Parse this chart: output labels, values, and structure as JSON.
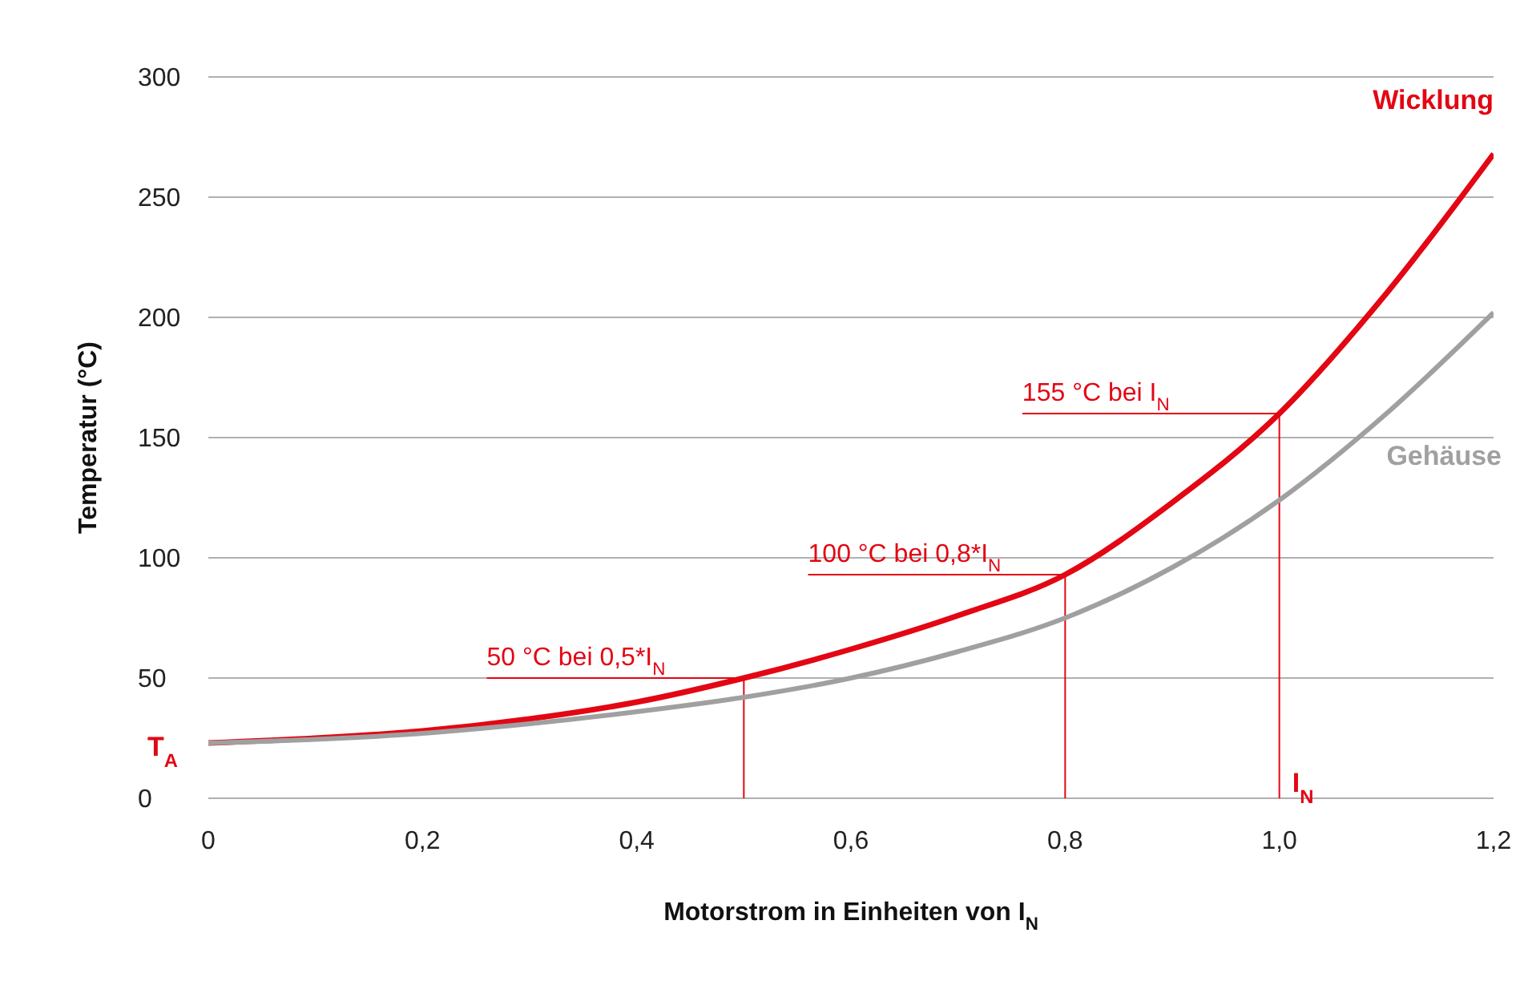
{
  "chart_data": {
    "type": "line",
    "xlabel": "Motorstrom in Einheiten von I$_{N}$",
    "ylabel": "Temperatur (°C)",
    "x": [
      0,
      0.1,
      0.2,
      0.3,
      0.4,
      0.5,
      0.6,
      0.7,
      0.8,
      0.9,
      1.0,
      1.1,
      1.2
    ],
    "series": [
      {
        "name": "Wicklung",
        "color": "#e30613",
        "values": [
          23,
          25,
          28,
          33,
          40,
          50,
          62,
          76,
          93,
          123,
          160,
          210,
          268
        ]
      },
      {
        "name": "Gehäuse",
        "color": "#a0a0a0",
        "values": [
          23,
          24.5,
          27,
          31,
          36,
          42,
          50,
          61,
          75,
          96,
          124,
          160,
          202
        ]
      }
    ],
    "xlim": [
      0,
      1.2
    ],
    "xticks": [
      0,
      {
        "value": 0.2,
        "label": "0,2"
      },
      {
        "value": 0.4,
        "label": "0,4"
      },
      {
        "value": 0.6,
        "label": "0,6"
      },
      {
        "value": 0.8,
        "label": "0,8"
      },
      {
        "value": 1.0,
        "label": "1,0"
      },
      {
        "value": 1.2,
        "label": "1,2"
      }
    ],
    "ylim": [
      0,
      300
    ],
    "yticks": [
      0,
      50,
      100,
      150,
      200,
      250,
      300
    ],
    "grid": "y",
    "annotations": [
      {
        "text": "50 °C bei 0,5*I$_{N}$",
        "x": 0.5,
        "y": 50
      },
      {
        "text": "100 °C bei 0,8*I$_{N}$",
        "x": 0.8,
        "y": 93
      },
      {
        "text": "155 °C bei I$_{N}$",
        "x": 1.0,
        "y": 160
      },
      "T$_{A}$"
    ],
    "ref_lines": [
      {
        "axis": "x",
        "value": 1.0,
        "label": "I$_{N}$",
        "color": "#e30613"
      }
    ]
  }
}
